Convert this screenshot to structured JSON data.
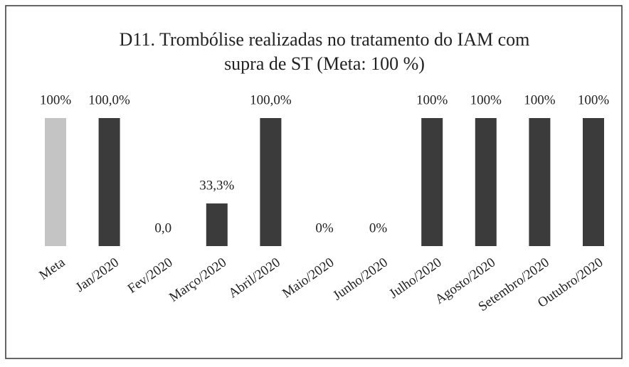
{
  "chart_data": {
    "type": "bar",
    "title": [
      "D11. Trombólise realizadas no tratamento do IAM com",
      "supra de ST    (Meta: 100 %)"
    ],
    "categories": [
      "Meta",
      "Jan/2020",
      "Fev/2020",
      "Março/2020",
      "Abril/2020",
      "Maio/2020",
      "Junho/2020",
      "Julho/2020",
      "Agosto/2020",
      "Setembro/2020",
      "Outubro/2020"
    ],
    "values": [
      100,
      100,
      0,
      33.3,
      100,
      0,
      0,
      100,
      100,
      100,
      100
    ],
    "value_labels": [
      "100%",
      "100,0%",
      "0,0",
      "33,3%",
      "100,0%",
      "0%",
      "0%",
      "100%",
      "100%",
      "100%",
      "100%"
    ],
    "colors": [
      "#c4c4c4",
      "#3b3b3b",
      "#3b3b3b",
      "#3b3b3b",
      "#3b3b3b",
      "#3b3b3b",
      "#3b3b3b",
      "#3b3b3b",
      "#3b3b3b",
      "#3b3b3b",
      "#3b3b3b"
    ],
    "ylim": [
      0,
      100
    ]
  }
}
